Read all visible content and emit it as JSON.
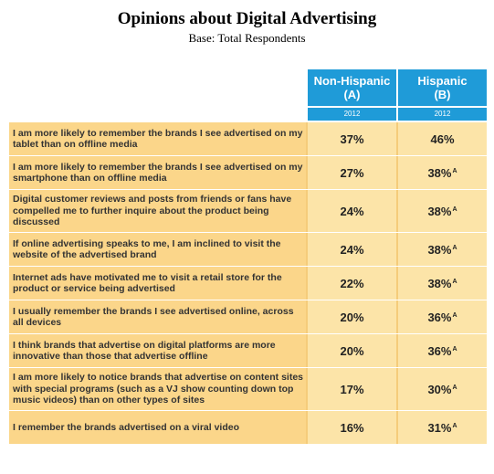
{
  "title": "Opinions about Digital Advertising",
  "subtitle": "Base: Total Respondents",
  "chart_data": {
    "type": "table",
    "columns": [
      {
        "name": "Non-Hispanic",
        "letter": "(A)",
        "year": "2012"
      },
      {
        "name": "Hispanic",
        "letter": "(B)",
        "year": "2012"
      }
    ],
    "rows": [
      {
        "label": "I am more likely to remember the brands I see advertised on my tablet than on offline media",
        "a": "37%",
        "b": "46%",
        "b_sig": ""
      },
      {
        "label": "I am more likely to remember the brands I see advertised on my smartphone than on offline media",
        "a": "27%",
        "b": "38%",
        "b_sig": "A"
      },
      {
        "label": "Digital customer reviews and posts from friends or fans have compelled me to further inquire about the product being discussed",
        "a": "24%",
        "b": "38%",
        "b_sig": "A"
      },
      {
        "label": "If online advertising speaks to me, I am inclined to visit the website of the advertised brand",
        "a": "24%",
        "b": "38%",
        "b_sig": "A"
      },
      {
        "label": "Internet ads have motivated me to visit a retail store for the product or service being advertised",
        "a": "22%",
        "b": "38%",
        "b_sig": "A"
      },
      {
        "label": "I usually remember the brands I see advertised online, across all devices",
        "a": "20%",
        "b": "36%",
        "b_sig": "A"
      },
      {
        "label": "I think brands that advertise on digital platforms are more innovative than those that advertise offline",
        "a": "20%",
        "b": "36%",
        "b_sig": "A"
      },
      {
        "label": "I am more likely to notice brands that advertise on content sites with special programs (such as a VJ show counting down top music videos) than on other types of sites",
        "a": "17%",
        "b": "30%",
        "b_sig": "A"
      },
      {
        "label": "I remember the brands advertised on a viral video",
        "a": "16%",
        "b": "31%",
        "b_sig": "A"
      }
    ]
  }
}
